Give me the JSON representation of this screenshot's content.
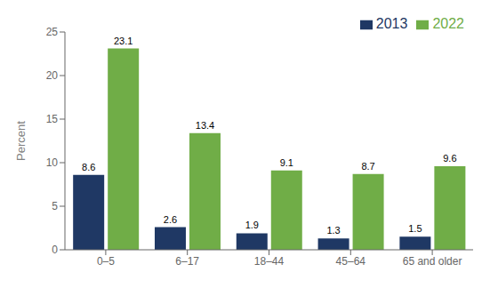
{
  "chart_data": {
    "type": "bar",
    "categories": [
      "0–5",
      "6–17",
      "18–44",
      "45–64",
      "65 and older"
    ],
    "series": [
      {
        "name": "2013",
        "color": "#1f3864",
        "values": [
          8.6,
          2.6,
          1.9,
          1.3,
          1.5
        ]
      },
      {
        "name": "2022",
        "color": "#70ad47",
        "values": [
          23.1,
          13.4,
          9.1,
          8.7,
          9.6
        ]
      }
    ],
    "ylabel": "Percent",
    "ylim": [
      0,
      25
    ],
    "yticks": [
      0,
      5,
      10,
      15,
      20,
      25
    ],
    "legend": "upper right",
    "data_labels": true,
    "grid": false
  }
}
